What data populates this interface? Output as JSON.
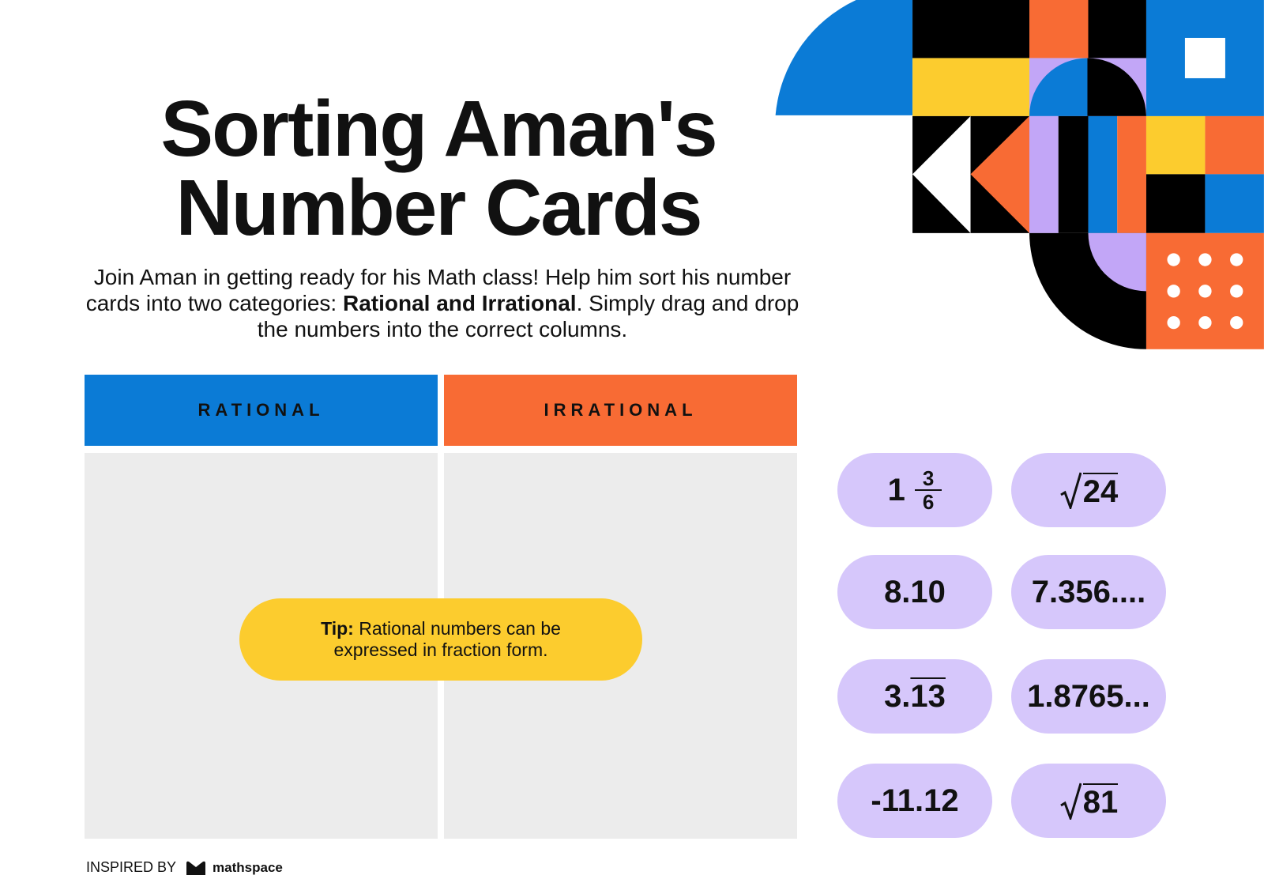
{
  "header": {
    "title_lines": [
      "Sorting Aman's",
      "Number Cards"
    ]
  },
  "intro": {
    "before": "Join Aman in getting ready for his Math class! Help him sort his number cards into two categories: ",
    "bold": "Rational and Irrational",
    "after": ". Simply drag and drop the numbers into the correct columns."
  },
  "columns": [
    "RATIONAL",
    "IRRATIONAL"
  ],
  "tip": {
    "label": "Tip:",
    "text": "Rational numbers can be expressed in fraction form."
  },
  "cards": [
    {
      "whole": "1",
      "numerator": "3",
      "denominator": "6"
    },
    {
      "radicand": "24"
    },
    {
      "text": "8.10"
    },
    {
      "text": "7.356...."
    },
    {
      "text": "3.",
      "repeating": "13"
    },
    {
      "text": "1.8765..."
    },
    {
      "text": "-11.12"
    },
    {
      "radicand": "81"
    }
  ],
  "footer": {
    "label": "INSPIRED BY",
    "brand": "mathspace"
  }
}
